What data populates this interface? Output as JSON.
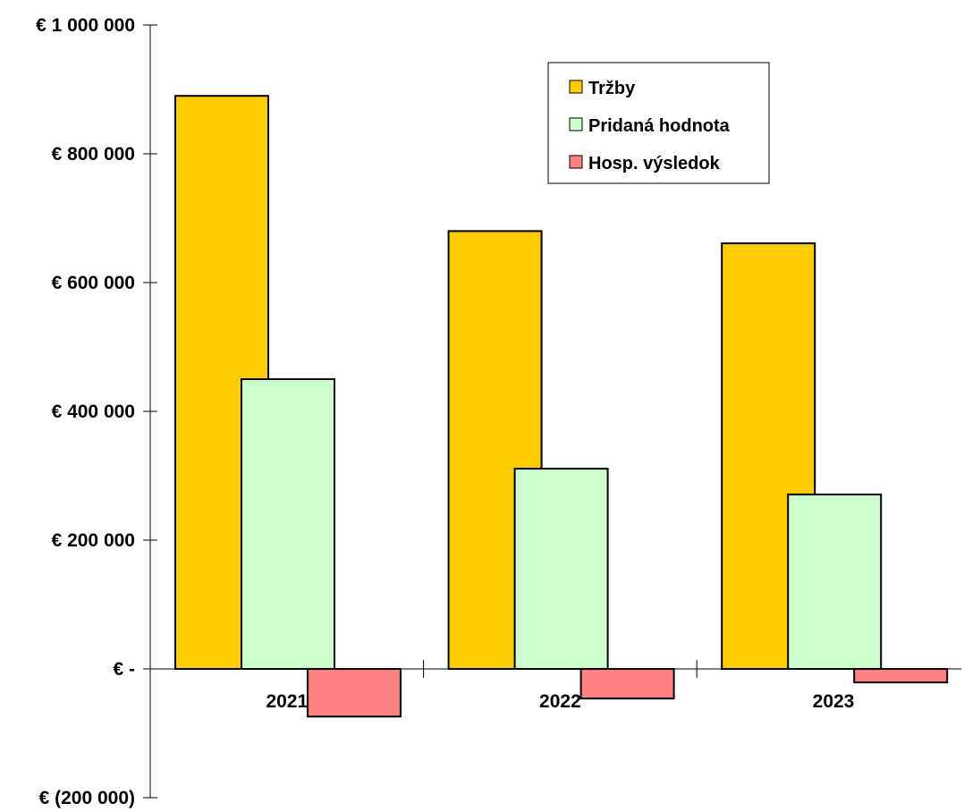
{
  "chart_data": {
    "type": "bar",
    "categories": [
      "2021",
      "2022",
      "2023"
    ],
    "series": [
      {
        "name": "Tržby",
        "values": [
          890000,
          680000,
          661000
        ],
        "color": "#FFCC00"
      },
      {
        "name": "Pridaná hodnota",
        "values": [
          450000,
          311000,
          271000
        ],
        "color": "#CCFFCC"
      },
      {
        "name": "Hosp. výsledok",
        "values": [
          -74000,
          -46000,
          -21000
        ],
        "color": "#FF8080"
      }
    ],
    "ylim": [
      -200000,
      1000000
    ],
    "y_ticks": [
      {
        "value": 1000000,
        "label": "€ 1 000 000"
      },
      {
        "value": 800000,
        "label": "€ 800 000"
      },
      {
        "value": 600000,
        "label": "€ 600 000"
      },
      {
        "value": 400000,
        "label": "€ 400 000"
      },
      {
        "value": 200000,
        "label": "€ 200 000"
      },
      {
        "value": 0,
        "label": "€ -"
      },
      {
        "value": -200000,
        "label": "€ (200 000)"
      }
    ],
    "legend_position": "top-right",
    "grid": false
  }
}
